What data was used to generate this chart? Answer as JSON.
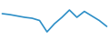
{
  "x": [
    0,
    1,
    2,
    3,
    4,
    5,
    6,
    7,
    8,
    9,
    10,
    11,
    12,
    13,
    14
  ],
  "y": [
    8,
    7.8,
    7.5,
    7.2,
    7.0,
    6.5,
    4.0,
    5.8,
    7.2,
    8.8,
    7.2,
    8.5,
    7.5,
    6.5,
    5.2
  ],
  "line_color": "#2e8fc7",
  "linewidth": 1.2,
  "background_color": "#ffffff",
  "ylim": [
    2,
    11
  ],
  "xlim": [
    -0.3,
    14.3
  ]
}
